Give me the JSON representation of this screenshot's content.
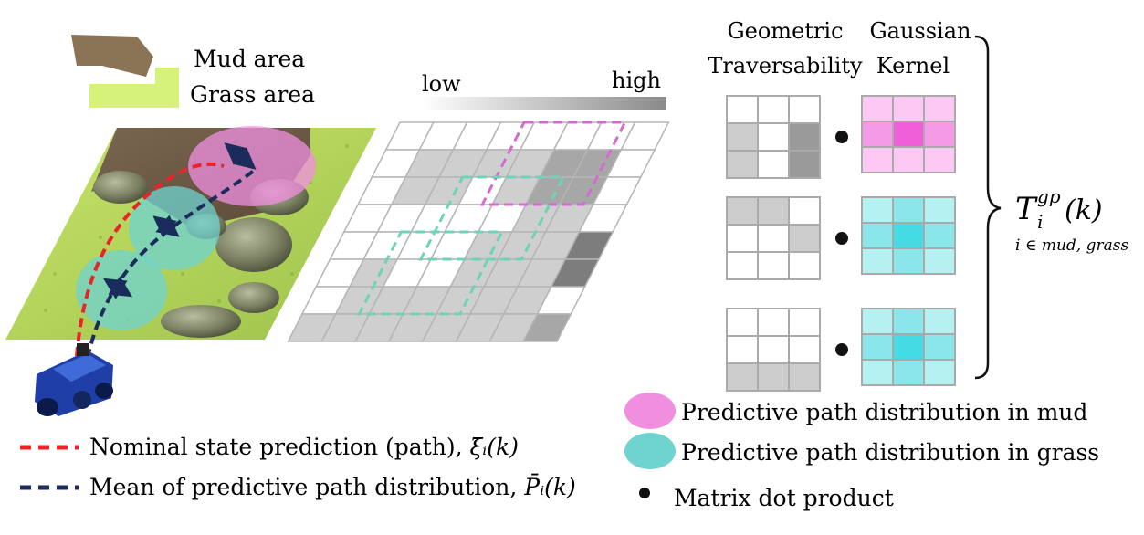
{
  "legend_terrain": {
    "mud_label": "Mud area",
    "grass_label": "Grass area",
    "mud_color": "#8b7355",
    "grass_color": "#d7f27a"
  },
  "scale": {
    "low_label": "low",
    "high_label": "high"
  },
  "columns": {
    "geo_line1": "Geometric",
    "geo_line2": "Traversability",
    "kernel_line1": "Gaussian",
    "kernel_line2": "Kernel"
  },
  "traversability_grids": [
    {
      "cells": [
        [
          0,
          0,
          0
        ],
        [
          1,
          0,
          2
        ],
        [
          1,
          0,
          2
        ]
      ]
    },
    {
      "cells": [
        [
          1,
          1,
          0
        ],
        [
          0,
          0,
          1
        ],
        [
          0,
          0,
          0
        ]
      ]
    },
    {
      "cells": [
        [
          0,
          0,
          0
        ],
        [
          0,
          0,
          0
        ],
        [
          1,
          1,
          1
        ]
      ]
    }
  ],
  "kernels": [
    {
      "kind": "mud"
    },
    {
      "kind": "grass"
    },
    {
      "kind": "grass"
    }
  ],
  "result": {
    "symbol": "T",
    "superscript": "gp",
    "subscript": "i",
    "argument": "(k)",
    "condition": "i ∈ mud, grass"
  },
  "legend_paths": {
    "nominal_text": "Nominal state prediction (path), ",
    "nominal_symbol": "ξ̄ᵢ(k)",
    "mean_text": "Mean of predictive path distribution, ",
    "mean_symbol": "P̄ᵢ(k)",
    "nominal_color": "#e8262a",
    "mean_color": "#1a2c5b"
  },
  "legend_dist": {
    "mud_text": "Predictive path distribution in mud",
    "grass_text": "Predictive path distribution in grass",
    "dot_text": "Matrix dot product",
    "mud_color": "#f08fe0",
    "grass_color": "#6fd3d0"
  }
}
